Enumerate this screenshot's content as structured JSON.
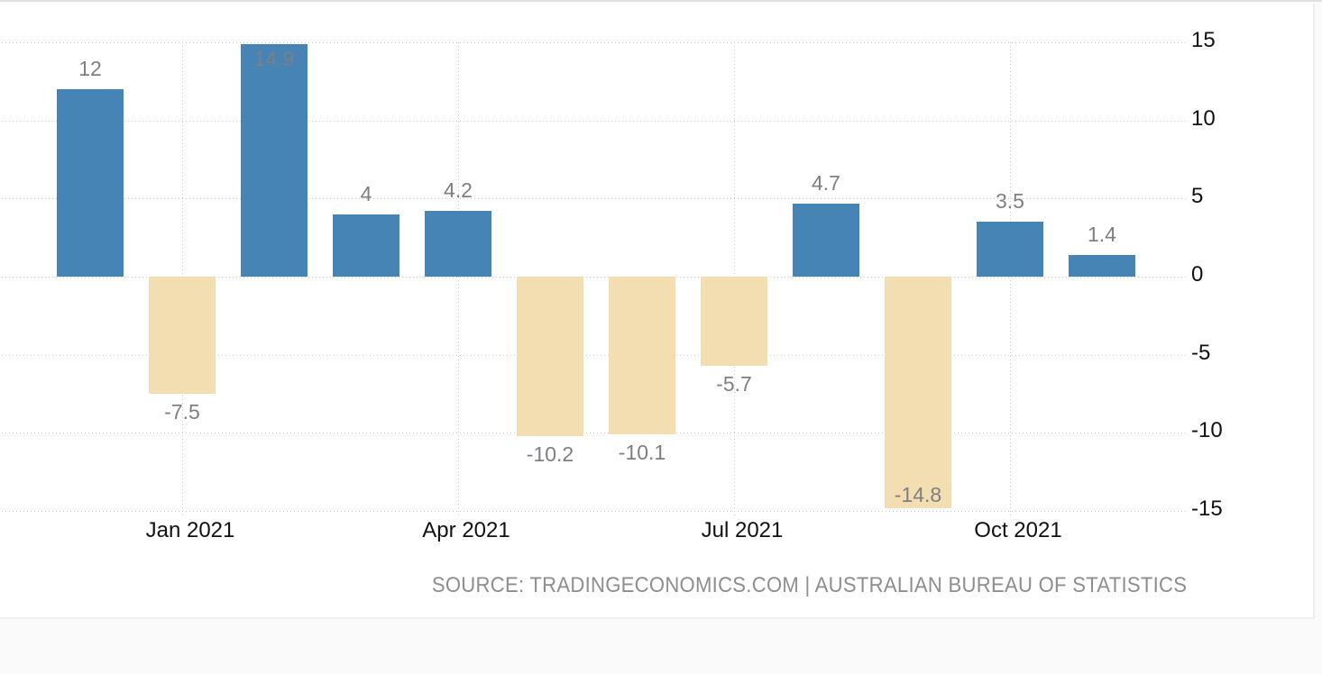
{
  "chart_data": {
    "type": "bar",
    "title": "",
    "values": [
      12,
      -7.5,
      14.9,
      4,
      4.2,
      -10.2,
      -10.1,
      -5.7,
      4.7,
      -14.8,
      3.5,
      1.4
    ],
    "bar_labels": [
      "12",
      "-7.5",
      "14.9",
      "4",
      "4.2",
      "-10.2",
      "-10.1",
      "-5.7",
      "4.7",
      "-14.8",
      "3.5",
      "1.4"
    ],
    "inside_label_indices": [
      2,
      9
    ],
    "x_ticks": [
      {
        "bar_index": 1,
        "label": "Jan 2021"
      },
      {
        "bar_index": 4,
        "label": "Apr 2021"
      },
      {
        "bar_index": 7,
        "label": "Jul 2021"
      },
      {
        "bar_index": 10,
        "label": "Oct 2021"
      }
    ],
    "y_ticks": [
      "15",
      "10",
      "5",
      "0",
      "-5",
      "-10",
      "-15"
    ],
    "y_tick_values": [
      15,
      10,
      5,
      0,
      -5,
      -10,
      -15
    ],
    "ylim": [
      -15,
      15
    ],
    "grid": "dotted",
    "legend": "none",
    "y_axis_side": "right",
    "colors": {
      "positive_bar": "#4784b6",
      "negative_bar": "#f3deb2",
      "bar_label": "#7d7f82",
      "axis_text": "#111111",
      "grid_dot": "#c9c9c9",
      "source_text": "#8e8e8e"
    },
    "source_text": "SOURCE: TRADINGECONOMICS.COM | AUSTRALIAN BUREAU OF STATISTICS"
  }
}
